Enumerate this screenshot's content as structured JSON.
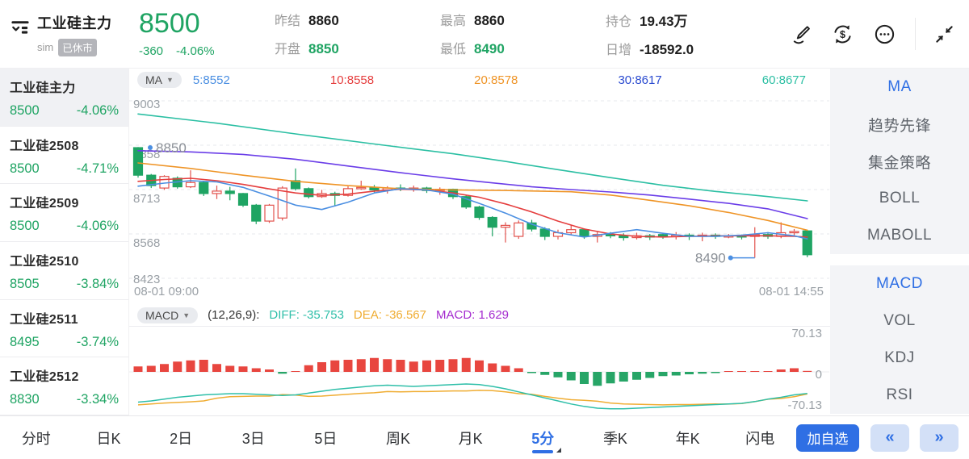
{
  "header": {
    "instrument": "工业硅主力",
    "account": "sim",
    "market_status": "已休市",
    "last_price": "8500",
    "change": "-360",
    "change_pct": "-4.06%",
    "price_color": "#1fa463",
    "stats": [
      {
        "label": "昨结",
        "value": "8860",
        "color": "dark"
      },
      {
        "label": "开盘",
        "value": "8850",
        "color": "green"
      },
      {
        "label": "最高",
        "value": "8860",
        "color": "dark"
      },
      {
        "label": "最低",
        "value": "8490",
        "color": "green"
      },
      {
        "label": "持仓",
        "value": "19.43万",
        "color": "dark"
      },
      {
        "label": "日增",
        "value": "-18592.0",
        "color": "dark"
      }
    ],
    "icons": [
      "draw-icon",
      "currency-refresh-icon",
      "more-circle-icon",
      "collapse-icon"
    ]
  },
  "watchlist": {
    "items": [
      {
        "name": "工业硅主力",
        "price": "8500",
        "pct": "-4.06%",
        "selected": true
      },
      {
        "name": "工业硅2508",
        "price": "8500",
        "pct": "-4.71%",
        "selected": false
      },
      {
        "name": "工业硅2509",
        "price": "8500",
        "pct": "-4.06%",
        "selected": false
      },
      {
        "name": "工业硅2510",
        "price": "8505",
        "pct": "-3.84%",
        "selected": false
      },
      {
        "name": "工业硅2511",
        "price": "8495",
        "pct": "-3.74%",
        "selected": false
      },
      {
        "name": "工业硅2512",
        "price": "8830",
        "pct": "-3.34%",
        "selected": false
      }
    ]
  },
  "ma_legend": {
    "selector": "MA",
    "items": [
      {
        "label": "5:8552",
        "color": "#4b8fe2"
      },
      {
        "label": "10:8558",
        "color": "#e53e3e"
      },
      {
        "label": "20:8578",
        "color": "#ef9426"
      },
      {
        "label": "30:8617",
        "color": "#2b4bd0"
      },
      {
        "label": "60:8677",
        "color": "#2bbfa3"
      }
    ]
  },
  "macd_legend": {
    "selector": "MACD",
    "params": "(12,26,9):",
    "items": [
      {
        "label": "DIFF: -35.753",
        "color": "#2fbfa9"
      },
      {
        "label": "DEA: -36.567",
        "color": "#f0ad33"
      },
      {
        "label": "MACD: 1.629",
        "color": "#a52ccf"
      }
    ]
  },
  "indicator_menu": {
    "groups": [
      {
        "items": [
          {
            "label": "MA",
            "selected": true
          },
          {
            "label": "趋势先锋",
            "selected": false
          },
          {
            "label": "集金策略",
            "selected": false
          },
          {
            "label": "BOLL",
            "selected": false
          },
          {
            "label": "MABOLL",
            "selected": false
          }
        ]
      },
      {
        "items": [
          {
            "label": "MACD",
            "selected": true
          },
          {
            "label": "VOL",
            "selected": false
          },
          {
            "label": "KDJ",
            "selected": false
          },
          {
            "label": "RSI",
            "selected": false
          }
        ]
      }
    ]
  },
  "bottom_bar": {
    "tabs": [
      {
        "label": "分时",
        "selected": false
      },
      {
        "label": "日K",
        "selected": false
      },
      {
        "label": "2日",
        "selected": false
      },
      {
        "label": "3日",
        "selected": false
      },
      {
        "label": "5日",
        "selected": false
      },
      {
        "label": "周K",
        "selected": false
      },
      {
        "label": "月K",
        "selected": false
      },
      {
        "label": "5分",
        "selected": true,
        "caret": true
      },
      {
        "label": "季K",
        "selected": false
      },
      {
        "label": "年K",
        "selected": false
      },
      {
        "label": "闪电",
        "selected": false
      }
    ],
    "add_button": "加自选",
    "prev_label": "«",
    "next_label": "»"
  },
  "chart_data": {
    "type": "candlestick",
    "price_panel": {
      "ylim": [
        8423,
        9003
      ],
      "yticks": [
        "9003",
        "8858",
        "8713",
        "8568",
        "8423"
      ],
      "ytick_values": [
        9003,
        8858,
        8713,
        8568,
        8423
      ],
      "xticks": [
        "08-01 09:00",
        "08-01 14:55"
      ],
      "markers": [
        {
          "index": 0,
          "price": 8850,
          "label": "8850",
          "side": "right"
        },
        {
          "index": 47,
          "price": 8490,
          "label": "8490",
          "side": "left"
        }
      ],
      "colors": {
        "up": "#e2524d",
        "down": "#1fa463",
        "marker_dot": "#4b8fe2",
        "grid": "#e7e8ec",
        "axis_text": "#9aa0a6"
      },
      "candles": [
        [
          8850,
          8760,
          8852,
          8752
        ],
        [
          8760,
          8726,
          8764,
          8718
        ],
        [
          8718,
          8756,
          8760,
          8712
        ],
        [
          8750,
          8722,
          8756,
          8716
        ],
        [
          8722,
          8736,
          8776,
          8718
        ],
        [
          8736,
          8700,
          8740,
          8692
        ],
        [
          8700,
          8708,
          8726,
          8682
        ],
        [
          8708,
          8700,
          8722,
          8678
        ],
        [
          8700,
          8662,
          8702,
          8656
        ],
        [
          8662,
          8610,
          8666,
          8600
        ],
        [
          8610,
          8662,
          8666,
          8604
        ],
        [
          8620,
          8718,
          8724,
          8612
        ],
        [
          8742,
          8716,
          8782,
          8710
        ],
        [
          8716,
          8690,
          8720,
          8684
        ],
        [
          8690,
          8700,
          8712,
          8686
        ],
        [
          8700,
          8694,
          8706,
          8658
        ],
        [
          8694,
          8716,
          8724,
          8690
        ],
        [
          8716,
          8720,
          8742,
          8712
        ],
        [
          8720,
          8712,
          8728,
          8704
        ],
        [
          8712,
          8718,
          8724,
          8700
        ],
        [
          8718,
          8714,
          8730,
          8708
        ],
        [
          8714,
          8718,
          8726,
          8706
        ],
        [
          8718,
          8710,
          8722,
          8702
        ],
        [
          8710,
          8714,
          8720,
          8696
        ],
        [
          8714,
          8690,
          8716,
          8682
        ],
        [
          8690,
          8656,
          8694,
          8650
        ],
        [
          8656,
          8622,
          8660,
          8614
        ],
        [
          8622,
          8590,
          8626,
          8560
        ],
        [
          8590,
          8596,
          8606,
          8540
        ],
        [
          8560,
          8604,
          8612,
          8552
        ],
        [
          8604,
          8584,
          8614,
          8576
        ],
        [
          8584,
          8560,
          8590,
          8548
        ],
        [
          8560,
          8572,
          8582,
          8550
        ],
        [
          8572,
          8582,
          8598,
          8566
        ],
        [
          8582,
          8560,
          8586,
          8552
        ],
        [
          8560,
          8566,
          8576,
          8540
        ],
        [
          8566,
          8562,
          8574,
          8554
        ],
        [
          8562,
          8556,
          8570,
          8546
        ],
        [
          8556,
          8562,
          8572,
          8550
        ],
        [
          8562,
          8558,
          8568,
          8548
        ],
        [
          8566,
          8560,
          8572,
          8552
        ],
        [
          8560,
          8564,
          8574,
          8550
        ],
        [
          8564,
          8560,
          8570,
          8548
        ],
        [
          8560,
          8564,
          8572,
          8544
        ],
        [
          8564,
          8560,
          8570,
          8552
        ],
        [
          8560,
          8562,
          8568,
          8554
        ],
        [
          8562,
          8560,
          8566,
          8550
        ],
        [
          8560,
          8566,
          8590,
          8490
        ],
        [
          8566,
          8560,
          8574,
          8552
        ],
        [
          8560,
          8572,
          8606,
          8554
        ],
        [
          8572,
          8576,
          8584,
          8562
        ],
        [
          8578,
          8500,
          8582,
          8492
        ]
      ],
      "ma_lines": [
        {
          "name": "MA60",
          "color": "#2bbfa3",
          "points": [
            [
              0,
              8960
            ],
            [
              6,
              8930
            ],
            [
              12,
              8895
            ],
            [
              18,
              8862
            ],
            [
              24,
              8830
            ],
            [
              28,
              8805
            ],
            [
              32,
              8778
            ],
            [
              36,
              8752
            ],
            [
              40,
              8727
            ],
            [
              44,
              8707
            ],
            [
              48,
              8690
            ],
            [
              51,
              8676
            ]
          ]
        },
        {
          "name": "MA30",
          "color": "#6a3de8",
          "points": [
            [
              0,
              8840
            ],
            [
              4,
              8836
            ],
            [
              8,
              8828
            ],
            [
              12,
              8812
            ],
            [
              16,
              8790
            ],
            [
              20,
              8768
            ],
            [
              24,
              8748
            ],
            [
              27,
              8735
            ],
            [
              30,
              8722
            ],
            [
              33,
              8713
            ],
            [
              36,
              8705
            ],
            [
              39,
              8695
            ],
            [
              42,
              8682
            ],
            [
              45,
              8668
            ],
            [
              48,
              8650
            ],
            [
              51,
              8618
            ]
          ]
        },
        {
          "name": "MA20",
          "color": "#ef9426",
          "points": [
            [
              0,
              8800
            ],
            [
              4,
              8782
            ],
            [
              8,
              8760
            ],
            [
              12,
              8740
            ],
            [
              16,
              8726
            ],
            [
              20,
              8716
            ],
            [
              24,
              8712
            ],
            [
              28,
              8710
            ],
            [
              33,
              8706
            ],
            [
              36,
              8695
            ],
            [
              39,
              8678
            ],
            [
              42,
              8660
            ],
            [
              45,
              8638
            ],
            [
              48,
              8612
            ],
            [
              51,
              8580
            ]
          ]
        },
        {
          "name": "MA10",
          "color": "#e53e3e",
          "points": [
            [
              0,
              8740
            ],
            [
              2,
              8746
            ],
            [
              4,
              8750
            ],
            [
              6,
              8742
            ],
            [
              8,
              8730
            ],
            [
              10,
              8715
            ],
            [
              12,
              8702
            ],
            [
              14,
              8694
            ],
            [
              16,
              8698
            ],
            [
              18,
              8708
            ],
            [
              20,
              8714
            ],
            [
              22,
              8712
            ],
            [
              24,
              8702
            ],
            [
              26,
              8688
            ],
            [
              28,
              8666
            ],
            [
              30,
              8640
            ],
            [
              32,
              8610
            ],
            [
              34,
              8584
            ],
            [
              36,
              8568
            ],
            [
              38,
              8560
            ],
            [
              40,
              8558
            ],
            [
              42,
              8560
            ],
            [
              44,
              8562
            ],
            [
              46,
              8562
            ],
            [
              48,
              8562
            ],
            [
              50,
              8560
            ],
            [
              51,
              8558
            ]
          ]
        },
        {
          "name": "MA5",
          "color": "#4b8fe2",
          "points": [
            [
              0,
              8724
            ],
            [
              2,
              8734
            ],
            [
              4,
              8742
            ],
            [
              6,
              8738
            ],
            [
              8,
              8720
            ],
            [
              10,
              8692
            ],
            [
              12,
              8662
            ],
            [
              14,
              8648
            ],
            [
              16,
              8672
            ],
            [
              18,
              8702
            ],
            [
              20,
              8716
            ],
            [
              22,
              8712
            ],
            [
              24,
              8698
            ],
            [
              26,
              8668
            ],
            [
              28,
              8636
            ],
            [
              30,
              8600
            ],
            [
              32,
              8572
            ],
            [
              34,
              8558
            ],
            [
              36,
              8570
            ],
            [
              38,
              8582
            ],
            [
              40,
              8570
            ],
            [
              42,
              8560
            ],
            [
              44,
              8560
            ],
            [
              46,
              8564
            ],
            [
              48,
              8572
            ],
            [
              50,
              8562
            ],
            [
              51,
              8552
            ]
          ]
        }
      ]
    },
    "macd_panel": {
      "ylim": [
        -70.13,
        70.13
      ],
      "yticks": [
        "70.13",
        "0",
        "-70.13"
      ],
      "colors": {
        "up": "#e8463f",
        "down": "#27a567",
        "diff": "#2fbfa9",
        "dea": "#f0ad33",
        "zero_line": "#ececef"
      },
      "histogram": [
        9,
        10,
        13,
        17,
        19,
        20,
        13,
        10,
        9,
        6,
        4,
        -3,
        0.5,
        11,
        16,
        19,
        20,
        21,
        23,
        21,
        20,
        17,
        19,
        20,
        21,
        23,
        19,
        14,
        10,
        6,
        -2,
        -5,
        -9,
        -14,
        -20,
        -23,
        -19,
        -16,
        -13,
        -10,
        -7,
        -6,
        -4,
        -3,
        -2,
        0.5,
        0.5,
        0.5,
        0.5,
        4,
        6,
        1.6
      ],
      "diff": [
        -50,
        -48,
        -45,
        -42,
        -40,
        -38,
        -37,
        -36,
        -36,
        -37,
        -38,
        -39,
        -38,
        -35,
        -32,
        -29,
        -27,
        -25,
        -23,
        -22,
        -23,
        -24,
        -23,
        -22,
        -21,
        -20,
        -21,
        -24,
        -28,
        -33,
        -38,
        -43,
        -48,
        -53,
        -57,
        -60,
        -61,
        -61,
        -60,
        -59,
        -58,
        -57,
        -56,
        -55,
        -54,
        -53,
        -52,
        -49,
        -45,
        -42,
        -38,
        -35.8
      ]
    }
  }
}
